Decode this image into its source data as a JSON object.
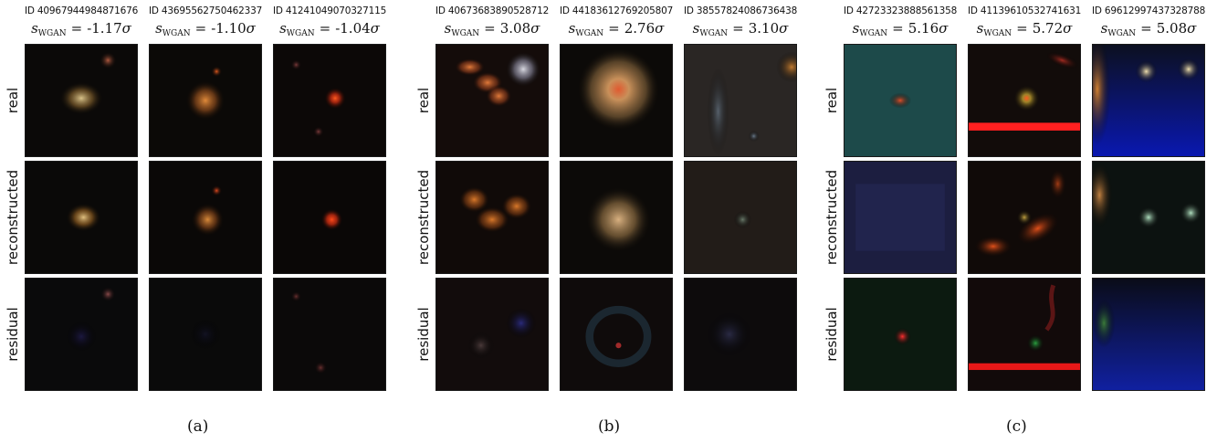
{
  "figure": {
    "row_labels": [
      "real",
      "reconstructed",
      "residual"
    ],
    "score_symbol": "s",
    "score_subscript": "WGAN",
    "score_unit": "σ",
    "panels": [
      {
        "letter": "(a)",
        "columns": [
          {
            "id": "ID 40967944984871676",
            "score": "-1.17"
          },
          {
            "id": "ID 43695562750462337",
            "score": "-1.10"
          },
          {
            "id": "ID 41241049070327115",
            "score": "-1.04"
          }
        ]
      },
      {
        "letter": "(b)",
        "columns": [
          {
            "id": "ID 40673683890528712",
            "score": "3.08"
          },
          {
            "id": "ID 44183612769205807",
            "score": "2.76"
          },
          {
            "id": "ID 38557824086736438",
            "score": "3.10"
          }
        ]
      },
      {
        "letter": "(c)",
        "columns": [
          {
            "id": "ID 42723323888561358",
            "score": "5.16"
          },
          {
            "id": "ID 41139610532741631",
            "score": "5.72"
          },
          {
            "id": "ID 69612997437328788",
            "score": "5.08"
          }
        ]
      }
    ]
  }
}
